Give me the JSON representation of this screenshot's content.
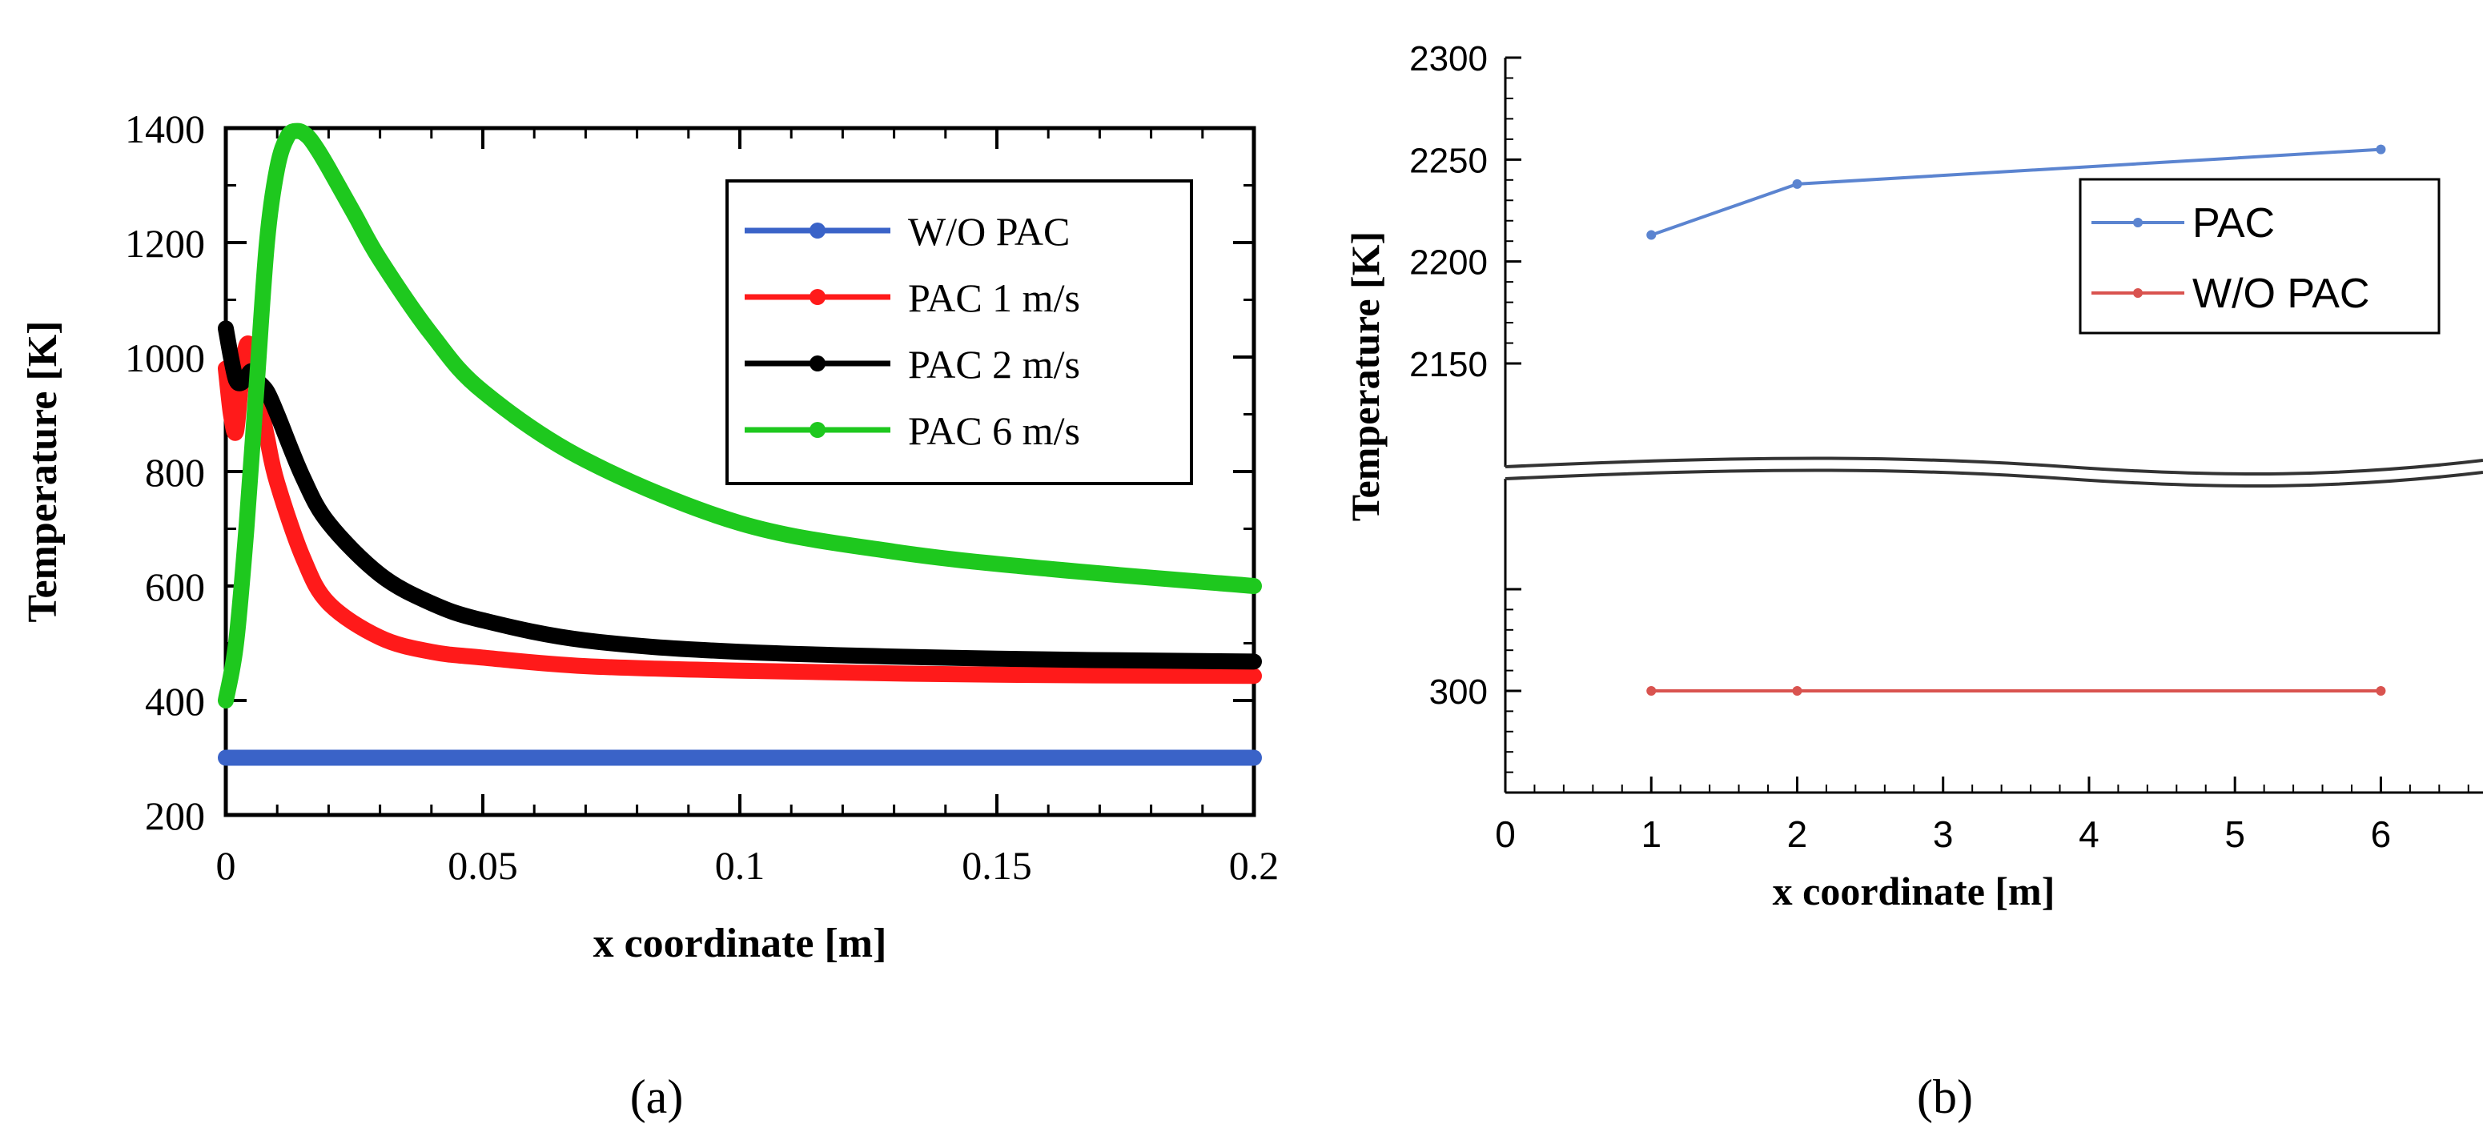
{
  "chart_data": [
    {
      "panel_label": "(a)",
      "type": "line",
      "title": "",
      "xlabel": "x coordinate [m]",
      "ylabel": "Temperature [K]",
      "xlim": [
        0,
        0.2
      ],
      "ylim": [
        200,
        1400
      ],
      "xticks": [
        "0",
        "0.05",
        "0.1",
        "0.15",
        "0.2"
      ],
      "yticks": [
        "200",
        "400",
        "600",
        "800",
        "1000",
        "1200",
        "1400"
      ],
      "grid": false,
      "legend_position": "top-right",
      "series": [
        {
          "name": "W/O PAC",
          "color": "#3a63c8",
          "x": [
            0,
            0.05,
            0.1,
            0.15,
            0.2
          ],
          "y": [
            300,
            300,
            300,
            300,
            300
          ]
        },
        {
          "name": "PAC 1 m/s",
          "color": "#ff1a1a",
          "x": [
            0,
            0.001,
            0.002,
            0.003,
            0.004,
            0.005,
            0.006,
            0.008,
            0.01,
            0.015,
            0.02,
            0.03,
            0.04,
            0.05,
            0.07,
            0.1,
            0.15,
            0.2
          ],
          "y": [
            980,
            900,
            870,
            960,
            1020,
            1010,
            950,
            860,
            780,
            650,
            570,
            510,
            485,
            475,
            460,
            452,
            445,
            443
          ]
        },
        {
          "name": "PAC 2 m/s",
          "color": "#000000",
          "x": [
            0,
            0.001,
            0.002,
            0.003,
            0.004,
            0.005,
            0.006,
            0.008,
            0.01,
            0.015,
            0.02,
            0.03,
            0.04,
            0.05,
            0.07,
            0.1,
            0.15,
            0.2
          ],
          "y": [
            1050,
            1000,
            960,
            955,
            965,
            975,
            960,
            940,
            900,
            790,
            710,
            620,
            570,
            540,
            505,
            485,
            473,
            468
          ]
        },
        {
          "name": "PAC 6 m/s",
          "color": "#1ec81e",
          "x": [
            0,
            0.002,
            0.004,
            0.006,
            0.008,
            0.01,
            0.012,
            0.014,
            0.016,
            0.018,
            0.02,
            0.025,
            0.03,
            0.04,
            0.05,
            0.07,
            0.1,
            0.13,
            0.16,
            0.2
          ],
          "y": [
            400,
            500,
            700,
            950,
            1200,
            1330,
            1385,
            1395,
            1385,
            1360,
            1330,
            1250,
            1170,
            1040,
            940,
            820,
            710,
            660,
            630,
            600
          ]
        }
      ]
    },
    {
      "panel_label": "(b)",
      "type": "line",
      "title": "",
      "xlabel": "x coordinate [m]",
      "ylabel": "Temperature [K]",
      "xlim": [
        0,
        6.7
      ],
      "xticks": [
        "0",
        "1",
        "2",
        "3",
        "4",
        "5",
        "6"
      ],
      "yticks": [
        "300",
        "2150",
        "2200",
        "2250",
        "2300"
      ],
      "axis_break": "between 2150 and 300",
      "grid": false,
      "legend_position": "top-right",
      "series": [
        {
          "name": "PAC",
          "color": "#5b84d0",
          "x": [
            1,
            2,
            6
          ],
          "y": [
            2213,
            2238,
            2255
          ]
        },
        {
          "name": "W/O PAC",
          "color": "#d9534f",
          "x": [
            1,
            2,
            6
          ],
          "y": [
            300,
            300,
            300
          ]
        }
      ]
    }
  ]
}
